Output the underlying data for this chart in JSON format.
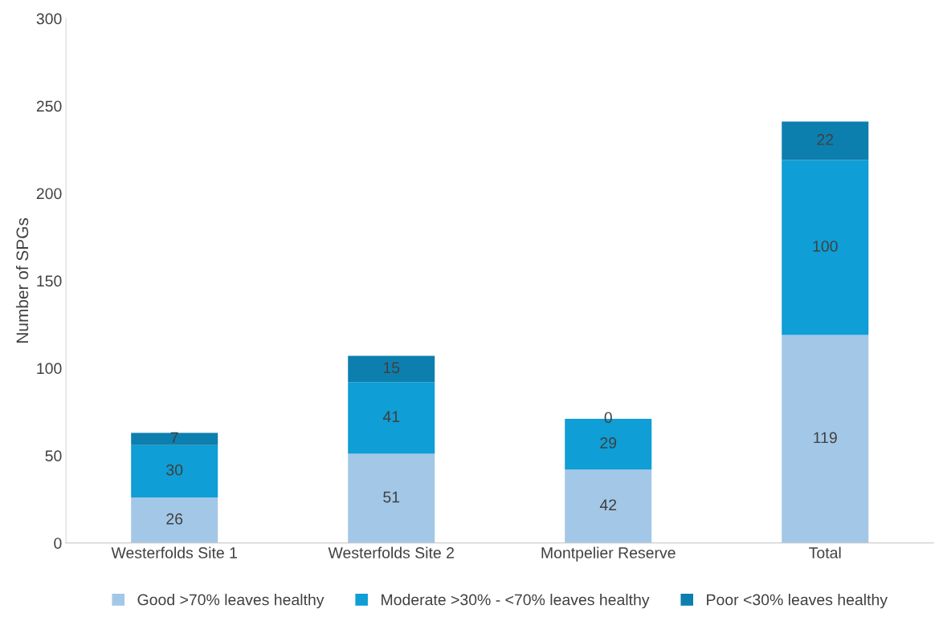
{
  "chart_data": {
    "type": "bar",
    "stacked": true,
    "ylabel": "Number of SPGs",
    "categories": [
      "Westerfolds Site 1",
      "Westerfolds Site 2",
      "Montpelier Reserve",
      "Total"
    ],
    "series": [
      {
        "name": "Good >70% leaves healthy",
        "color": "#a3c7e7",
        "values": [
          26,
          51,
          42,
          119
        ]
      },
      {
        "name": "Moderate >30% - <70% leaves healthy",
        "color": "#0f9ed5",
        "values": [
          30,
          41,
          29,
          100
        ]
      },
      {
        "name": "Poor <30% leaves healthy",
        "color": "#0d7fae",
        "values": [
          7,
          15,
          0,
          22
        ]
      }
    ],
    "ylim": [
      0,
      300
    ],
    "yticks": [
      0,
      50,
      100,
      150,
      200,
      250,
      300
    ],
    "grid": false,
    "legend": "bottom",
    "data_labels": true
  }
}
